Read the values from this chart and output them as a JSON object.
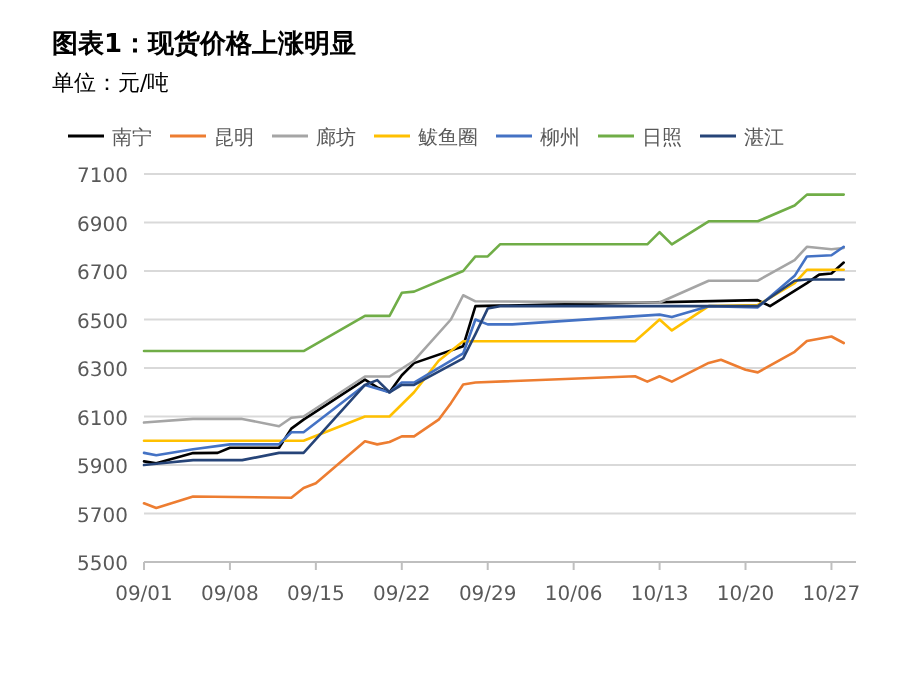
{
  "chart_data": {
    "type": "line",
    "title": "图表1：现货价格上涨明显",
    "subtitle": "单位：元/吨",
    "legend": "top",
    "grid": "y",
    "xlim": [
      "--09-01",
      "--10-29"
    ],
    "xticks": [
      {
        "value": "--09-01",
        "label": "09/01"
      },
      {
        "value": "--09-08",
        "label": "09/08"
      },
      {
        "value": "--09-15",
        "label": "09/15"
      },
      {
        "value": "--09-22",
        "label": "09/22"
      },
      {
        "value": "--09-29",
        "label": "09/29"
      },
      {
        "value": "--10-06",
        "label": "10/06"
      },
      {
        "value": "--10-13",
        "label": "10/13"
      },
      {
        "value": "--10-20",
        "label": "10/20"
      },
      {
        "value": "--10-27",
        "label": "10/27"
      }
    ],
    "ylim": [
      5500,
      7100
    ],
    "yticks": [
      5500,
      5700,
      5900,
      6100,
      6300,
      6500,
      6700,
      6900,
      7100
    ],
    "series": [
      {
        "name": "南宁",
        "color": "#000000",
        "x": [
          "--09-01",
          "--09-02",
          "--09-05",
          "--09-07",
          "--09-08",
          "--09-12",
          "--09-13",
          "--09-14",
          "--09-19",
          "--09-20",
          "--09-21",
          "--09-22",
          "--09-23",
          "--09-27",
          "--09-28",
          "--10-21",
          "--10-22",
          "--10-25",
          "--10-26",
          "--10-27",
          "--10-28"
        ],
        "values": [
          5915,
          5907,
          5949,
          5950,
          5971,
          5971,
          6050,
          6087,
          6252,
          6220,
          6200,
          6270,
          6320,
          6390,
          6555,
          6580,
          6555,
          6650,
          6685,
          6690,
          6735
        ]
      },
      {
        "name": "昆明",
        "color": "#ed7d31",
        "x": [
          "--09-01",
          "--09-02",
          "--09-05",
          "--09-13",
          "--09-14",
          "--09-15",
          "--09-19",
          "--09-20",
          "--09-21",
          "--09-22",
          "--09-23",
          "--09-25",
          "--09-26",
          "--09-27",
          "--09-28",
          "--10-11",
          "--10-12",
          "--10-13",
          "--10-14",
          "--10-17",
          "--10-18",
          "--10-20",
          "--10-21",
          "--10-24",
          "--10-25",
          "--10-27",
          "--10-28"
        ],
        "values": [
          5742,
          5723,
          5770,
          5765,
          5805,
          5825,
          5998,
          5985,
          5995,
          6018,
          6018,
          6087,
          6155,
          6232,
          6240,
          6266,
          6244,
          6266,
          6244,
          6321,
          6334,
          6293,
          6282,
          6367,
          6411,
          6430,
          6403
        ]
      },
      {
        "name": "廊坊",
        "color": "#a5a5a5",
        "x": [
          "--09-01",
          "--09-05",
          "--09-09",
          "--09-12",
          "--09-13",
          "--09-14",
          "--09-19",
          "--09-21",
          "--09-23",
          "--09-26",
          "--09-27",
          "--09-28",
          "--10-13",
          "--10-17",
          "--10-21",
          "--10-24",
          "--10-25",
          "--10-27",
          "--10-28"
        ],
        "values": [
          6075,
          6090,
          6090,
          6060,
          6095,
          6100,
          6265,
          6265,
          6330,
          6500,
          6600,
          6575,
          6570,
          6660,
          6660,
          6745,
          6800,
          6790,
          6795
        ]
      },
      {
        "name": "鲅鱼圈",
        "color": "#ffc000",
        "x": [
          "--09-01",
          "--09-14",
          "--09-19",
          "--09-21",
          "--09-23",
          "--09-25",
          "--09-27",
          "--09-28",
          "--10-11",
          "--10-12",
          "--10-13",
          "--10-14",
          "--10-17",
          "--10-21",
          "--10-24",
          "--10-25",
          "--10-28"
        ],
        "values": [
          6000,
          6000,
          6100,
          6100,
          6200,
          6330,
          6410,
          6410,
          6410,
          6455,
          6500,
          6455,
          6555,
          6560,
          6650,
          6705,
          6705
        ]
      },
      {
        "name": "柳州",
        "color": "#4472c4",
        "x": [
          "--09-01",
          "--09-02",
          "--09-05",
          "--09-08",
          "--09-12",
          "--09-13",
          "--09-14",
          "--09-19",
          "--09-21",
          "--09-22",
          "--09-23",
          "--09-27",
          "--09-28",
          "--09-29",
          "--10-01",
          "--10-13",
          "--10-14",
          "--10-17",
          "--10-21",
          "--10-24",
          "--10-25",
          "--10-27",
          "--10-28"
        ],
        "values": [
          5950,
          5940,
          5965,
          5985,
          5985,
          6035,
          6035,
          6230,
          6200,
          6240,
          6240,
          6360,
          6500,
          6480,
          6480,
          6520,
          6510,
          6555,
          6550,
          6680,
          6760,
          6765,
          6800
        ]
      },
      {
        "name": "日照",
        "color": "#70ad47",
        "x": [
          "--09-01",
          "--09-14",
          "--09-19",
          "--09-21",
          "--09-22",
          "--09-23",
          "--09-27",
          "--09-28",
          "--09-29",
          "--09-30",
          "--10-12",
          "--10-13",
          "--10-14",
          "--10-17",
          "--10-21",
          "--10-24",
          "--10-25",
          "--10-28"
        ],
        "values": [
          6370,
          6370,
          6515,
          6515,
          6610,
          6615,
          6700,
          6760,
          6760,
          6810,
          6810,
          6860,
          6810,
          6905,
          6905,
          6970,
          7015,
          7015
        ]
      },
      {
        "name": "湛江",
        "color": "#264478",
        "x": [
          "--09-01",
          "--09-02",
          "--09-05",
          "--09-09",
          "--09-12",
          "--09-14",
          "--09-19",
          "--09-20",
          "--09-21",
          "--09-22",
          "--09-23",
          "--09-27",
          "--09-28",
          "--09-29",
          "--09-30",
          "--10-21",
          "--10-24",
          "--10-25",
          "--10-28"
        ],
        "values": [
          5900,
          5905,
          5920,
          5920,
          5950,
          5950,
          6230,
          6250,
          6200,
          6230,
          6230,
          6340,
          6440,
          6545,
          6555,
          6555,
          6660,
          6665,
          6665
        ]
      }
    ]
  }
}
